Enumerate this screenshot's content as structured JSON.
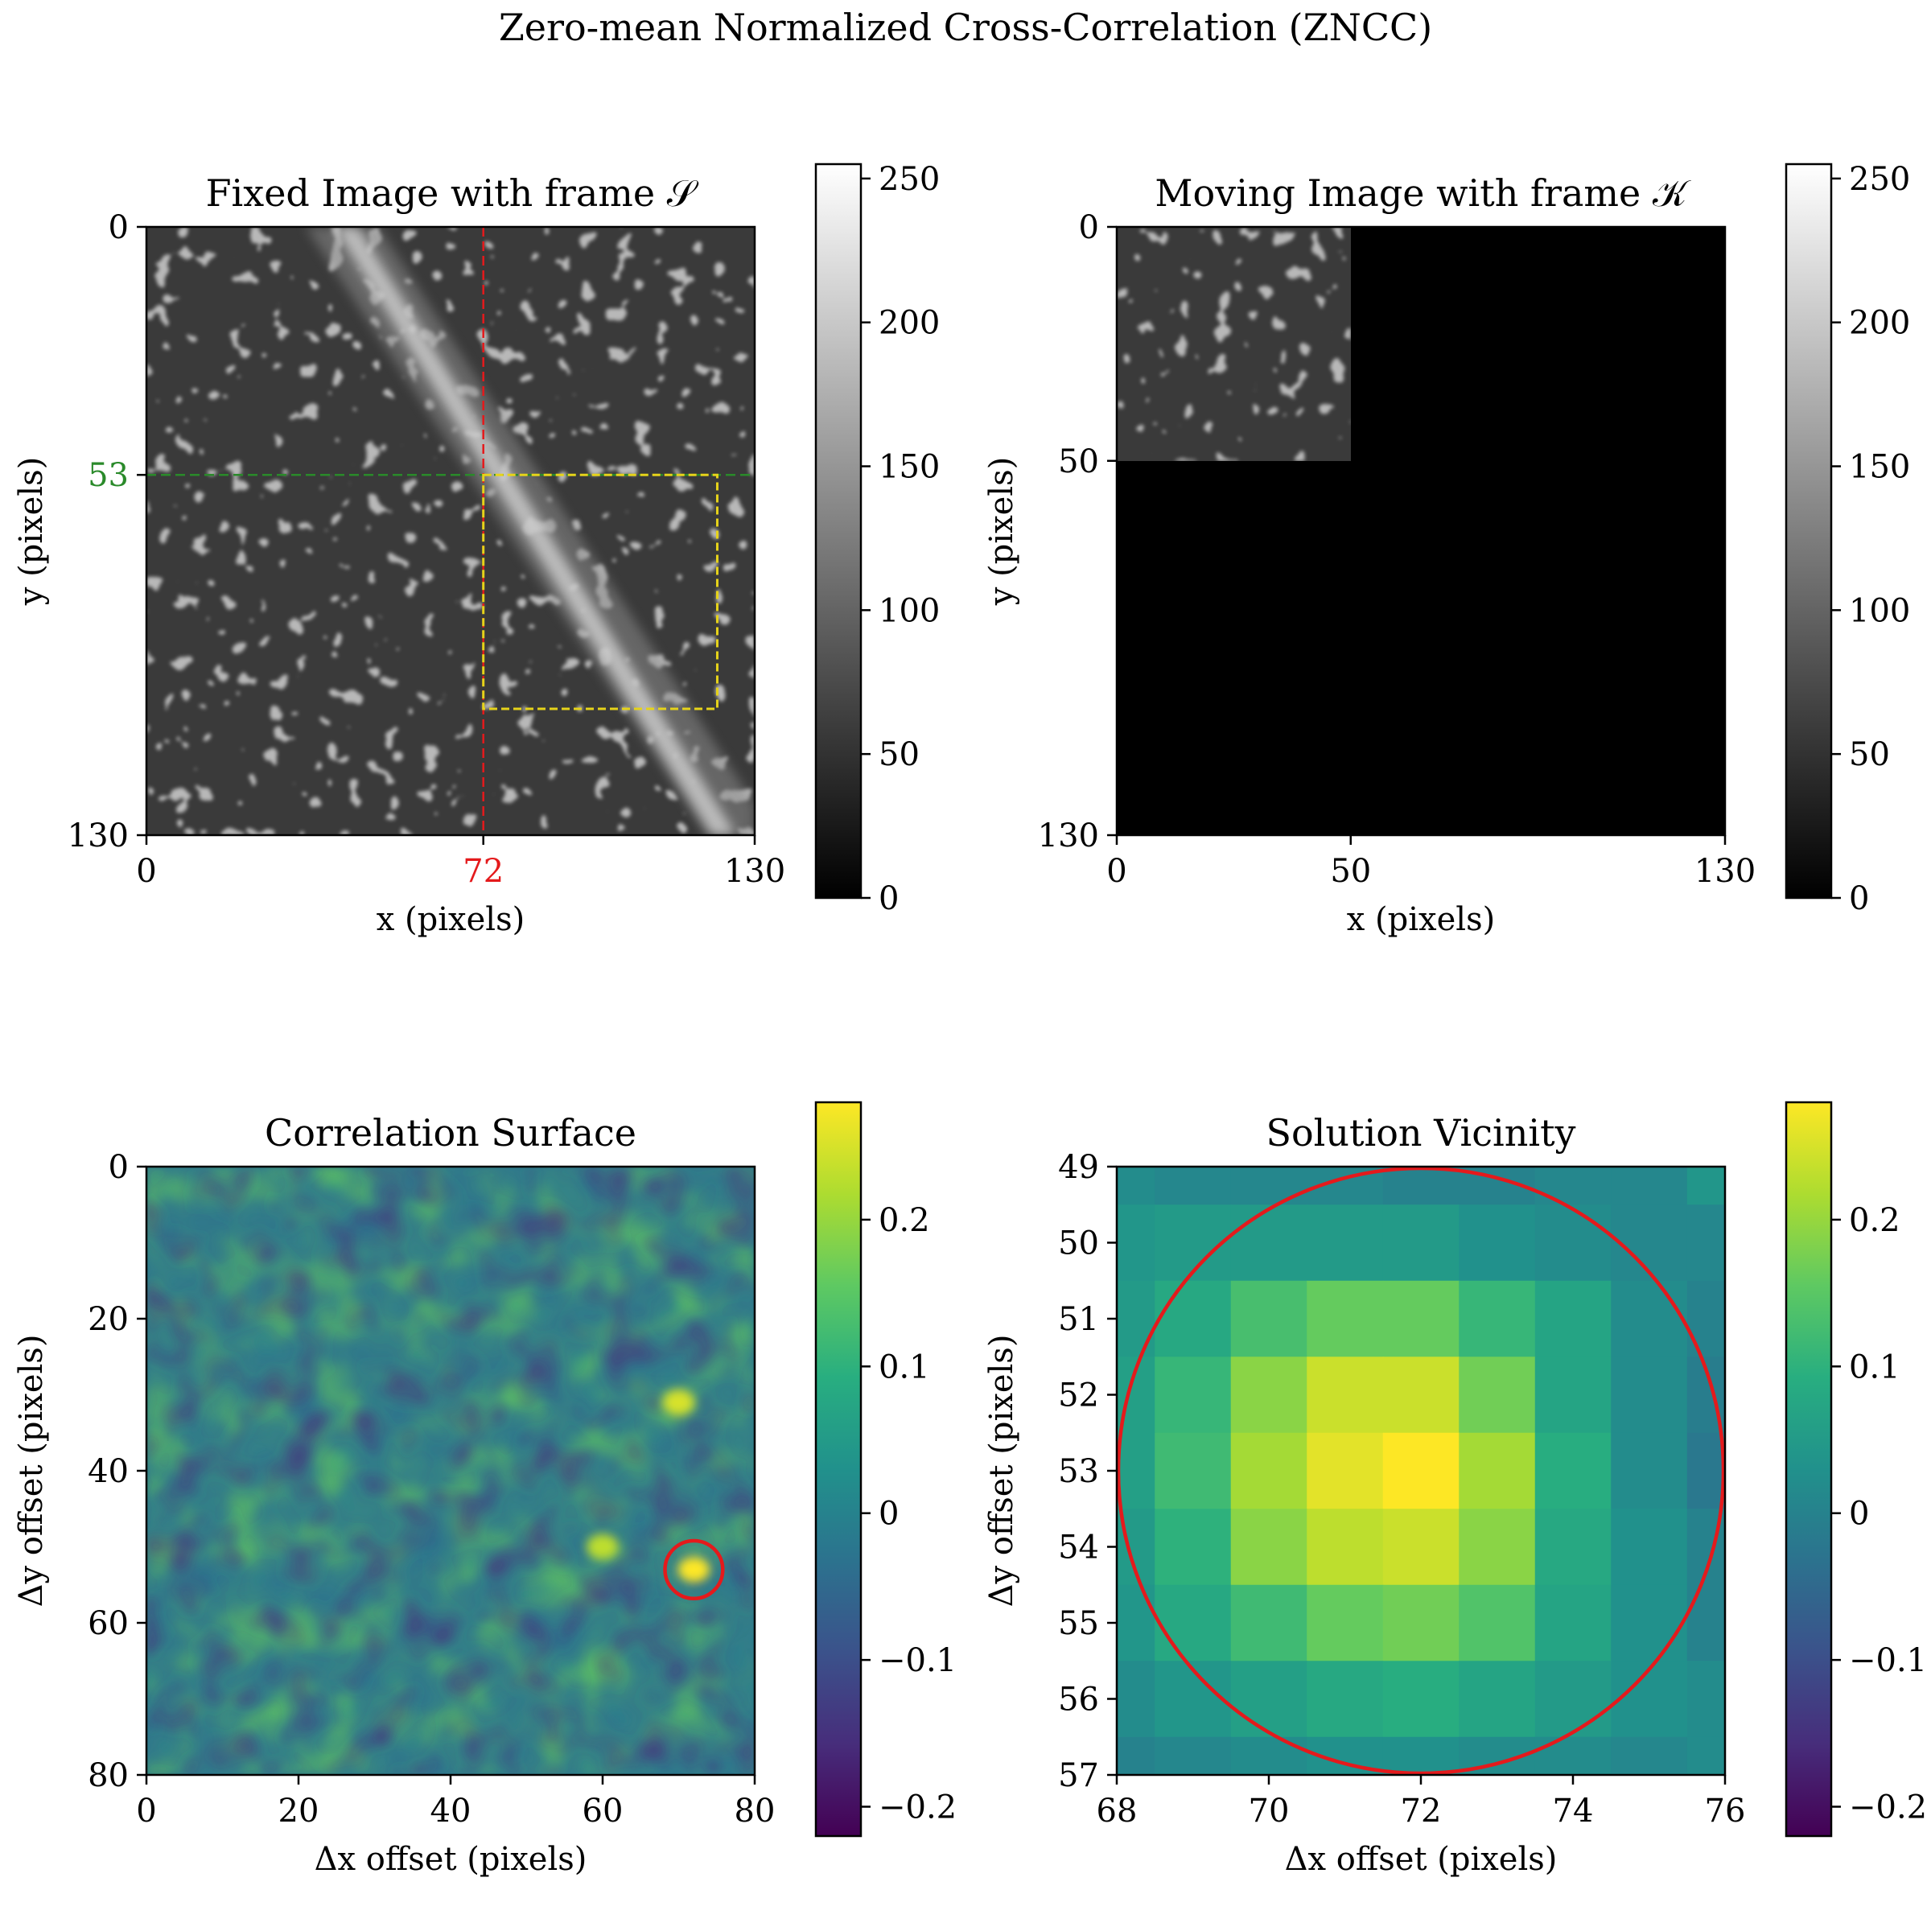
{
  "figure": {
    "title": "Zero-mean Normalized Cross-Correlation (ZNCC)"
  },
  "chart_data": [
    {
      "type": "heatmap",
      "title": "Fixed Image with frame 𝒮",
      "xlabel": "x (pixels)",
      "ylabel": "y (pixels)",
      "xlim": [
        0,
        130
      ],
      "ylim": [
        130,
        0
      ],
      "x_ticks": [
        0,
        72,
        130
      ],
      "y_ticks": [
        0,
        53,
        130
      ],
      "highlighted_ticks": {
        "x": 72,
        "y": 53
      },
      "colormap": "gray",
      "colorbar": {
        "range": [
          0,
          255
        ],
        "ticks": [
          0,
          50,
          100,
          150,
          200,
          250
        ]
      },
      "overlays": {
        "vline": {
          "x": 72,
          "color": "#e41a1c",
          "style": "dashed"
        },
        "hline": {
          "y": 53,
          "color": "#2a8a2a",
          "style": "dashed"
        },
        "frame": {
          "x0": 72,
          "y0": 53,
          "x1": 122,
          "y1": 103,
          "color": "#e6d31a",
          "style": "dashed"
        }
      },
      "content": "textured grayscale speckle image with diagonal bright streak"
    },
    {
      "type": "heatmap",
      "title": "Moving Image with frame 𝒦",
      "xlabel": "x (pixels)",
      "ylabel": "y (pixels)",
      "xlim": [
        0,
        130
      ],
      "ylim": [
        130,
        0
      ],
      "x_ticks": [
        0,
        50,
        130
      ],
      "y_ticks": [
        0,
        50,
        130
      ],
      "colormap": "gray",
      "colorbar": {
        "range": [
          0,
          255
        ],
        "ticks": [
          0,
          50,
          100,
          150,
          200,
          250
        ]
      },
      "content": "50×50 speckle patch in upper-left corner, remainder black (0)"
    },
    {
      "type": "heatmap",
      "title": "Correlation Surface",
      "xlabel": "Δx offset (pixels)",
      "ylabel": "Δy offset (pixels)",
      "xlim": [
        0,
        80
      ],
      "ylim": [
        80,
        0
      ],
      "x_ticks": [
        0,
        20,
        40,
        60,
        80
      ],
      "y_ticks": [
        0,
        20,
        40,
        60,
        80
      ],
      "colormap": "viridis",
      "colorbar": {
        "range": [
          -0.22,
          0.28
        ],
        "ticks": [
          -0.2,
          -0.1,
          0.0,
          0.1,
          0.2
        ]
      },
      "peak": {
        "x": 72,
        "y": 53,
        "value": 0.28
      },
      "secondary_peaks": [
        {
          "x": 70,
          "y": 31,
          "value": 0.25
        },
        {
          "x": 60,
          "y": 50,
          "value": 0.23
        }
      ],
      "marker": {
        "type": "circle",
        "x": 72,
        "y": 53,
        "radius": 3.8,
        "color": "#e41a1c"
      }
    },
    {
      "type": "heatmap",
      "title": "Solution Vicinity",
      "xlabel": "Δx offset (pixels)",
      "ylabel": "Δy offset (pixels)",
      "xlim": [
        68,
        76
      ],
      "ylim": [
        57,
        49
      ],
      "x_ticks": [
        68,
        70,
        72,
        74,
        76
      ],
      "y_ticks": [
        49,
        50,
        51,
        52,
        53,
        54,
        55,
        56,
        57
      ],
      "colormap": "viridis",
      "colorbar": {
        "range": [
          -0.22,
          0.28
        ],
        "ticks": [
          -0.2,
          -0.1,
          0.0,
          0.1,
          0.2
        ]
      },
      "x_centers": [
        68,
        69,
        70,
        71,
        72,
        73,
        74,
        75,
        76
      ],
      "y_centers": [
        49,
        50,
        51,
        52,
        53,
        54,
        55,
        56,
        57
      ],
      "values": [
        [
          0.02,
          0.01,
          0.01,
          0.01,
          0.0,
          0.0,
          0.01,
          0.01,
          0.04
        ],
        [
          0.04,
          0.05,
          0.05,
          0.05,
          0.05,
          0.03,
          0.02,
          0.01,
          0.01
        ],
        [
          0.05,
          0.08,
          0.13,
          0.16,
          0.16,
          0.11,
          0.07,
          0.02,
          0.0
        ],
        [
          0.06,
          0.11,
          0.19,
          0.24,
          0.24,
          0.17,
          0.07,
          0.02,
          -0.01
        ],
        [
          0.06,
          0.12,
          0.21,
          0.26,
          0.28,
          0.21,
          0.09,
          0.02,
          -0.02
        ],
        [
          0.05,
          0.1,
          0.19,
          0.23,
          0.24,
          0.19,
          0.08,
          0.03,
          0.0
        ],
        [
          0.04,
          0.08,
          0.12,
          0.16,
          0.17,
          0.14,
          0.07,
          0.03,
          0.0
        ],
        [
          0.02,
          0.04,
          0.06,
          0.08,
          0.09,
          0.07,
          0.05,
          0.03,
          0.02
        ],
        [
          0.0,
          0.01,
          0.02,
          0.03,
          0.03,
          0.02,
          0.02,
          0.01,
          0.02
        ]
      ],
      "marker": {
        "type": "circle",
        "x": 72,
        "y": 53,
        "radius": 4,
        "color": "#e41a1c"
      }
    }
  ]
}
